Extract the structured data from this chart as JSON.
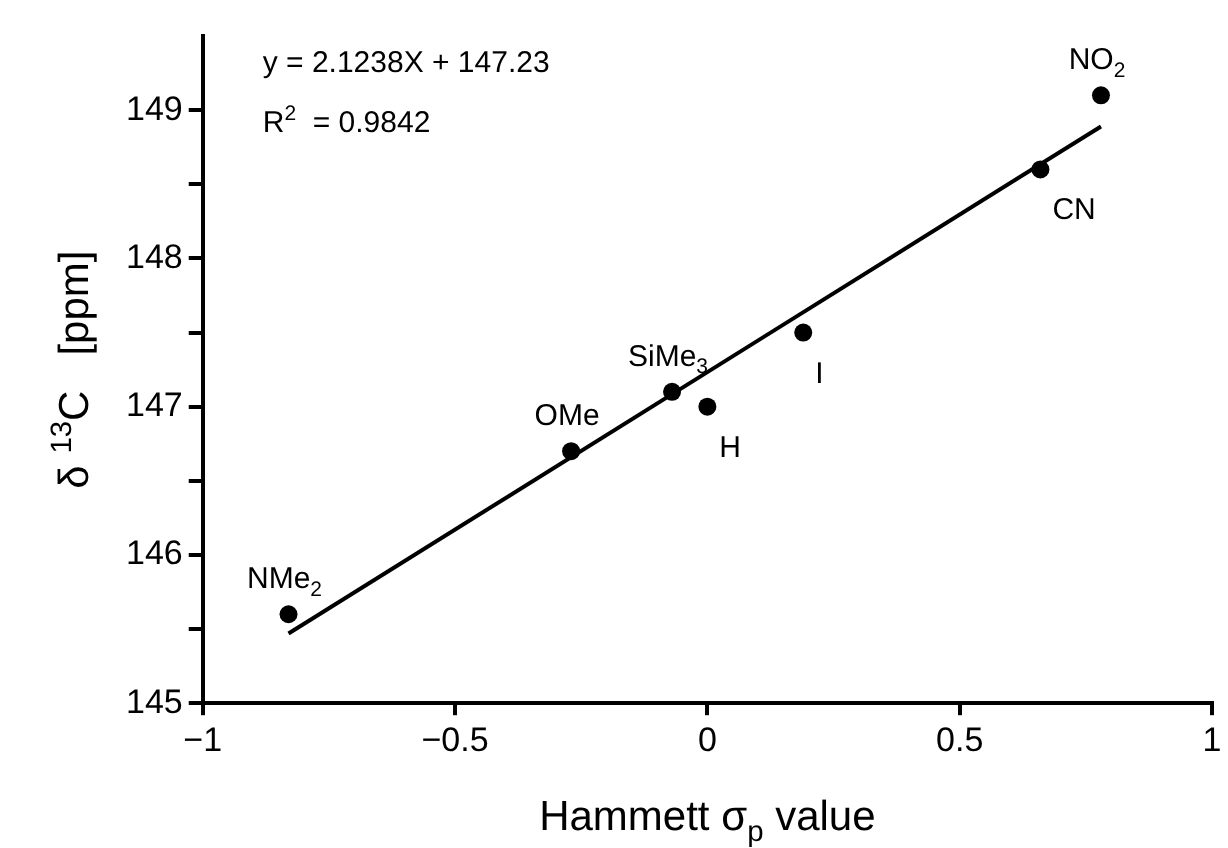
{
  "chart_data": {
    "type": "scatter",
    "xlabel": "Hammett σ$_{p}$ value",
    "ylabel": "δ $^{13}$C   [ppm]",
    "xlim": [
      -1,
      1
    ],
    "xticks": [
      {
        "value": -1,
        "label": "−1"
      },
      {
        "value": -0.5,
        "label": "−0.5"
      },
      0,
      0.5,
      1
    ],
    "ylim": [
      145,
      149.5
    ],
    "yticks": [
      145,
      {
        "value": 145.5,
        "label": null
      },
      146,
      {
        "value": 146.5,
        "label": null
      },
      147,
      {
        "value": 147.5,
        "label": null
      },
      148,
      {
        "value": 148.5,
        "label": null
      },
      149
    ],
    "grid": false,
    "legend": false,
    "marker": "circle",
    "series": [
      {
        "color": "#000000",
        "x": [
          -0.83,
          -0.27,
          -0.07,
          0.0,
          0.19,
          0.66,
          0.78
        ],
        "values": [
          145.6,
          146.7,
          147.1,
          147.0,
          147.5,
          148.6,
          149.1
        ]
      },
      {
        "type": "line",
        "color": "#000000",
        "marker": "none",
        "x": [
          -0.83,
          0.78
        ],
        "values": [
          145.47,
          148.89
        ]
      }
    ],
    "annotations": [
      "y = 2.1238X + 147.23",
      "R$^{2}$  = 0.9842",
      {
        "text": "NMe$_{2}$",
        "x": -0.83,
        "y": 145.6
      },
      {
        "text": "OMe",
        "x": -0.27,
        "y": 146.7
      },
      {
        "text": "SiMe$_{3}$",
        "x": -0.07,
        "y": 147.1
      },
      {
        "text": "H",
        "x": 0.0,
        "y": 147.0
      },
      {
        "text": "I",
        "x": 0.19,
        "y": 147.5
      },
      {
        "text": "CN",
        "x": 0.66,
        "y": 148.6
      },
      {
        "text": "NO$_{2}$",
        "x": 0.78,
        "y": 149.1
      }
    ]
  }
}
